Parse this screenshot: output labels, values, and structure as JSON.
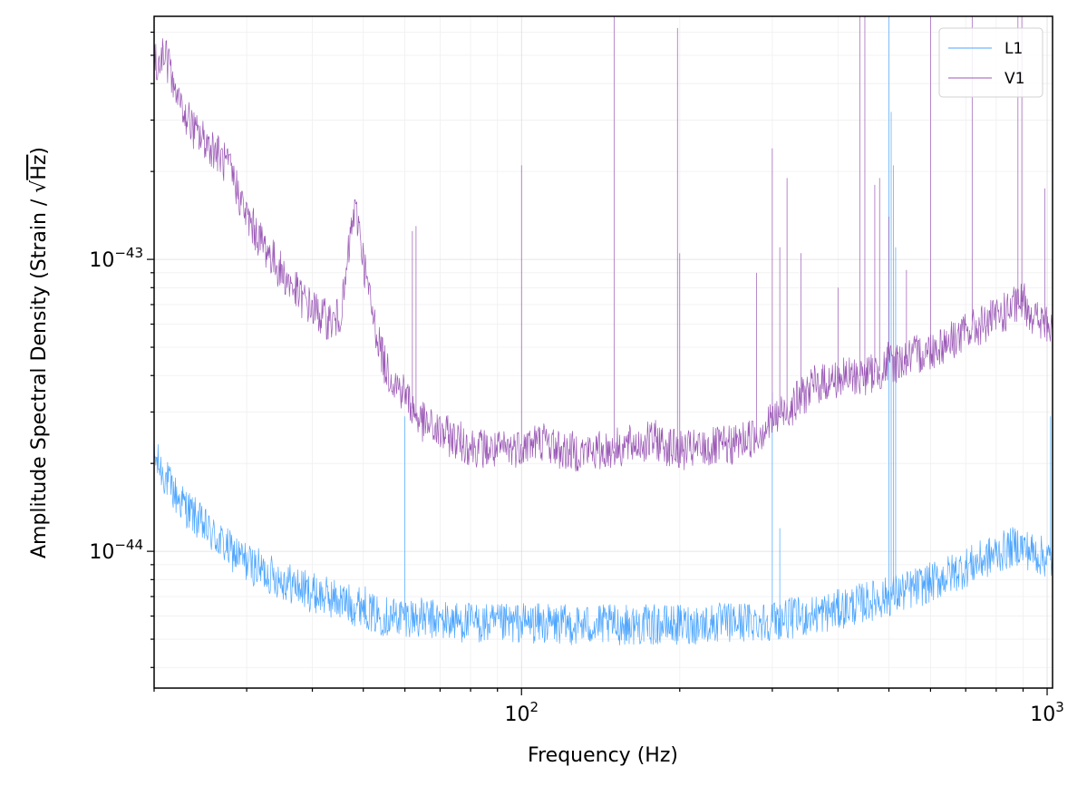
{
  "chart_data": {
    "type": "line",
    "title": "",
    "xlabel": "Frequency (Hz)",
    "ylabel_prefix": "Amplitude Spectral Density (Strain / ",
    "ylabel_sqrt": "√",
    "ylabel_radicand": "Hz",
    "ylabel_suffix": ")",
    "xscale": "log",
    "yscale": "log",
    "xlim": [
      20,
      1024
    ],
    "ylim": [
      3.4e-45,
      6.8e-43
    ],
    "grid": true,
    "legend_position": "top-right",
    "x_major_ticks": [
      {
        "value": 100,
        "base": "10",
        "exp": "2"
      },
      {
        "value": 1000,
        "base": "10",
        "exp": "3"
      }
    ],
    "y_major_ticks": [
      {
        "value": 1e-44,
        "base": "10",
        "exp": "−44"
      },
      {
        "value": 1e-43,
        "base": "10",
        "exp": "−43"
      }
    ],
    "series": [
      {
        "name": "L1",
        "color": "#4da6ff",
        "baseline": [
          [
            20,
            2.1e-44
          ],
          [
            22,
            1.55e-44
          ],
          [
            25,
            1.2e-44
          ],
          [
            28,
            1e-44
          ],
          [
            30,
            9.2e-45
          ],
          [
            32,
            8.6e-45
          ],
          [
            35,
            8e-45
          ],
          [
            40,
            7.2e-45
          ],
          [
            45,
            6.8e-45
          ],
          [
            48,
            6.5e-45
          ],
          [
            50,
            6.6e-45
          ],
          [
            52,
            6.1e-45
          ],
          [
            55,
            6e-45
          ],
          [
            60,
            6e-45
          ],
          [
            70,
            5.8e-45
          ],
          [
            80,
            5.7e-45
          ],
          [
            90,
            5.6e-45
          ],
          [
            100,
            5.7e-45
          ],
          [
            120,
            5.6e-45
          ],
          [
            150,
            5.6e-45
          ],
          [
            200,
            5.6e-45
          ],
          [
            250,
            5.7e-45
          ],
          [
            300,
            5.8e-45
          ],
          [
            350,
            6e-45
          ],
          [
            400,
            6.3e-45
          ],
          [
            450,
            6.7e-45
          ],
          [
            500,
            7e-45
          ],
          [
            600,
            7.8e-45
          ],
          [
            700,
            8.8e-45
          ],
          [
            800,
            9.8e-45
          ],
          [
            880,
            1.05e-44
          ],
          [
            950,
            9.8e-45
          ],
          [
            1000,
            9.5e-45
          ],
          [
            1024,
            9.2e-45
          ]
        ],
        "lines": [
          [
            60,
            2.9e-44
          ],
          [
            300,
            3.5e-44
          ],
          [
            310,
            1.2e-44
          ],
          [
            500,
            6.8e-43
          ],
          [
            505,
            3.2e-43
          ],
          [
            510,
            2.1e-43
          ],
          [
            515,
            1.1e-43
          ],
          [
            1015,
            2.9e-44
          ]
        ]
      },
      {
        "name": "V1",
        "color": "#9b59b6",
        "baseline": [
          [
            20,
            4.6e-43
          ],
          [
            21,
            5.1e-43
          ],
          [
            22,
            3.6e-43
          ],
          [
            24,
            2.7e-43
          ],
          [
            26,
            2.4e-43
          ],
          [
            28,
            2e-43
          ],
          [
            30,
            1.4e-43
          ],
          [
            32,
            1.15e-43
          ],
          [
            35,
            9e-44
          ],
          [
            38,
            7.4e-44
          ],
          [
            40,
            6.8e-44
          ],
          [
            42,
            6.3e-44
          ],
          [
            44,
            6.1e-44
          ],
          [
            45,
            6.4e-44
          ],
          [
            46,
            7.5e-44
          ],
          [
            47,
            1.1e-43
          ],
          [
            48,
            1.45e-43
          ],
          [
            49,
            1.35e-43
          ],
          [
            50,
            1e-43
          ],
          [
            52,
            6.5e-44
          ],
          [
            55,
            4.3e-44
          ],
          [
            58,
            3.7e-44
          ],
          [
            60,
            3.5e-44
          ],
          [
            63,
            2.9e-44
          ],
          [
            66,
            2.7e-44
          ],
          [
            70,
            2.55e-44
          ],
          [
            80,
            2.3e-44
          ],
          [
            90,
            2.2e-44
          ],
          [
            100,
            2.3e-44
          ],
          [
            110,
            2.4e-44
          ],
          [
            120,
            2.2e-44
          ],
          [
            140,
            2.2e-44
          ],
          [
            160,
            2.3e-44
          ],
          [
            180,
            2.4e-44
          ],
          [
            200,
            2.2e-44
          ],
          [
            250,
            2.3e-44
          ],
          [
            280,
            2.5e-44
          ],
          [
            300,
            2.8e-44
          ],
          [
            330,
            3.2e-44
          ],
          [
            360,
            3.7e-44
          ],
          [
            400,
            3.9e-44
          ],
          [
            450,
            4e-44
          ],
          [
            490,
            4.2e-44
          ],
          [
            500,
            4.5e-44
          ],
          [
            510,
            4.4e-44
          ],
          [
            600,
            4.9e-44
          ],
          [
            700,
            5.6e-44
          ],
          [
            800,
            6.3e-44
          ],
          [
            870,
            6.9e-44
          ],
          [
            900,
            7.2e-44
          ],
          [
            950,
            6.3e-44
          ],
          [
            1000,
            5.9e-44
          ],
          [
            1024,
            5.6e-44
          ]
        ],
        "lines": [
          [
            62,
            1.25e-43
          ],
          [
            63,
            1.3e-43
          ],
          [
            100,
            2.1e-43
          ],
          [
            150,
            6.8e-43
          ],
          [
            198,
            6.2e-43
          ],
          [
            200,
            1.05e-43
          ],
          [
            280,
            9e-44
          ],
          [
            300,
            2.4e-43
          ],
          [
            310,
            1.1e-43
          ],
          [
            320,
            1.9e-43
          ],
          [
            340,
            1.05e-43
          ],
          [
            400,
            8e-44
          ],
          [
            440,
            6.8e-43
          ],
          [
            450,
            6.8e-43
          ],
          [
            470,
            1.8e-43
          ],
          [
            480,
            1.9e-43
          ],
          [
            500,
            1.4e-43
          ],
          [
            540,
            9.2e-44
          ],
          [
            600,
            6.8e-43
          ],
          [
            720,
            6.8e-43
          ],
          [
            880,
            6.8e-43
          ],
          [
            895,
            6.8e-43
          ],
          [
            990,
            1.75e-43
          ]
        ]
      }
    ]
  }
}
